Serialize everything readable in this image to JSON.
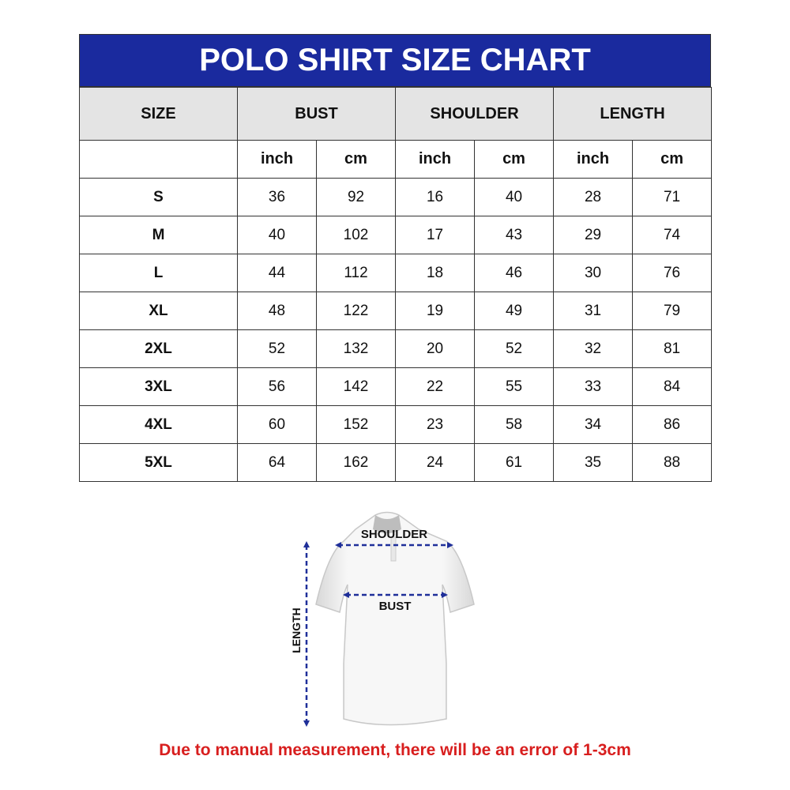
{
  "title": "POLO SHIRT SIZE CHART",
  "headers": [
    "SIZE",
    "BUST",
    "SHOULDER",
    "LENGTH"
  ],
  "units": [
    "inch",
    "cm",
    "inch",
    "cm",
    "inch",
    "cm"
  ],
  "rows": [
    [
      "S",
      "36",
      "92",
      "16",
      "40",
      "28",
      "71"
    ],
    [
      "M",
      "40",
      "102",
      "17",
      "43",
      "29",
      "74"
    ],
    [
      "L",
      "44",
      "112",
      "18",
      "46",
      "30",
      "76"
    ],
    [
      "XL",
      "48",
      "122",
      "19",
      "49",
      "31",
      "79"
    ],
    [
      "2XL",
      "52",
      "132",
      "20",
      "52",
      "32",
      "81"
    ],
    [
      "3XL",
      "56",
      "142",
      "22",
      "55",
      "33",
      "84"
    ],
    [
      "4XL",
      "60",
      "152",
      "23",
      "58",
      "34",
      "86"
    ],
    [
      "5XL",
      "64",
      "162",
      "24",
      "61",
      "35",
      "88"
    ]
  ],
  "diagram": {
    "shoulder": "SHOULDER",
    "bust": "BUST",
    "length": "LENGTH"
  },
  "note": "Due to manual measurement, there will be an error of 1-3cm",
  "colors": {
    "header": "#1a2a9e",
    "arrows": "#1f2f99",
    "note": "#d81e1e"
  }
}
